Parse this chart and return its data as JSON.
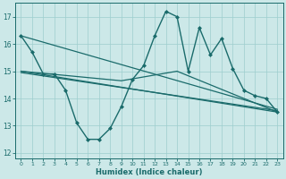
{
  "xlabel": "Humidex (Indice chaleur)",
  "xlim": [
    -0.5,
    23.5
  ],
  "ylim": [
    11.8,
    17.5
  ],
  "yticks": [
    12,
    13,
    14,
    15,
    16,
    17
  ],
  "xticks": [
    0,
    1,
    2,
    3,
    4,
    5,
    6,
    7,
    8,
    9,
    10,
    11,
    12,
    13,
    14,
    15,
    16,
    17,
    18,
    19,
    20,
    21,
    22,
    23
  ],
  "bg_color": "#cce8e8",
  "line_color": "#1a6b6b",
  "grid_color": "#9ecece",
  "series": [
    {
      "x": [
        0,
        1,
        2,
        3,
        4,
        5,
        6,
        7,
        8,
        9,
        10,
        11,
        12,
        13,
        14,
        15,
        16,
        17,
        18,
        19,
        20,
        21,
        22,
        23
      ],
      "y": [
        16.3,
        15.7,
        14.9,
        14.9,
        14.3,
        13.1,
        12.5,
        12.5,
        12.9,
        13.7,
        14.7,
        15.2,
        16.3,
        17.2,
        17.0,
        15.0,
        16.6,
        15.6,
        16.2,
        15.1,
        14.3,
        14.1,
        14.0,
        13.5
      ],
      "marker": "D",
      "markersize": 2.0,
      "linewidth": 1.0
    },
    {
      "x": [
        0,
        23
      ],
      "y": [
        15.0,
        13.5
      ],
      "marker": "None",
      "markersize": 0,
      "linewidth": 0.9
    },
    {
      "x": [
        0,
        23
      ],
      "y": [
        14.95,
        13.55
      ],
      "marker": "None",
      "markersize": 0,
      "linewidth": 0.9
    },
    {
      "x": [
        0,
        9,
        14,
        23
      ],
      "y": [
        15.0,
        14.65,
        15.0,
        13.5
      ],
      "marker": "None",
      "markersize": 0,
      "linewidth": 0.9
    },
    {
      "x": [
        0,
        23
      ],
      "y": [
        16.3,
        13.6
      ],
      "marker": "None",
      "markersize": 0,
      "linewidth": 0.9
    }
  ]
}
